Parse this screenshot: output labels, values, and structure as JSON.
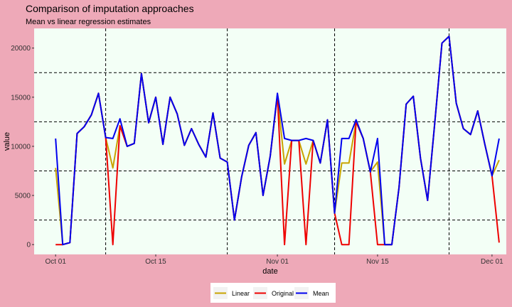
{
  "chart_data": {
    "type": "line",
    "title": "Comparison of imputation approaches",
    "subtitle": "Mean vs linear regression estimates",
    "xlabel": "date",
    "ylabel": "value",
    "x_start": "2018-10-01",
    "x_end": "2018-11-30",
    "xlim": [
      "2018-09-28",
      "2018-12-03"
    ],
    "ylim": [
      -1000,
      22000
    ],
    "x_ticks": [
      {
        "date": "2018-10-01",
        "label": "Oct 01"
      },
      {
        "date": "2018-10-15",
        "label": "Oct 15"
      },
      {
        "date": "2018-11-01",
        "label": "Nov 01"
      },
      {
        "date": "2018-11-15",
        "label": "Nov 15"
      },
      {
        "date": "2018-12-01",
        "label": "Dec 01"
      }
    ],
    "y_ticks": [
      0,
      5000,
      10000,
      15000,
      20000
    ],
    "hlines": [
      2500,
      7500,
      12500,
      17500
    ],
    "vlines": [
      "2018-10-08",
      "2018-10-25",
      "2018-11-09",
      "2018-11-25"
    ],
    "grid": true,
    "legend_position": "bottom",
    "colors": {
      "plot_background": "#f3fff6",
      "page_background": "#eea9b8",
      "Linear": "#c8a400",
      "Original": "#ee0000",
      "Mean": "#0000ee"
    },
    "series": [
      {
        "name": "Linear",
        "values": [
          7800,
          0,
          200,
          11300,
          12000,
          13200,
          15400,
          10900,
          7800,
          12100,
          10000,
          10300,
          17400,
          12400,
          15000,
          10200,
          15000,
          13300,
          10100,
          11800,
          10200,
          8900,
          13400,
          8800,
          8400,
          2500,
          6900,
          10100,
          11400,
          5000,
          9000,
          15200,
          8200,
          10600,
          10600,
          8200,
          10600,
          8300,
          12700,
          3200,
          8300,
          8300,
          12500,
          10800,
          7400,
          8400,
          0,
          0,
          5800,
          14300,
          15100,
          8800,
          4500,
          12400,
          20500,
          21200,
          14400,
          11800,
          11200,
          13600,
          10200,
          7000,
          8600
        ]
      },
      {
        "name": "Original",
        "values": [
          0,
          0,
          200,
          11300,
          12000,
          13200,
          15400,
          10900,
          0,
          12100,
          10000,
          10300,
          17400,
          12400,
          15000,
          10200,
          15000,
          13300,
          10100,
          11800,
          10200,
          8900,
          13400,
          8800,
          8400,
          2500,
          6900,
          10100,
          11400,
          5000,
          9000,
          15200,
          0,
          10600,
          10600,
          0,
          10600,
          8300,
          12700,
          3200,
          0,
          0,
          12500,
          10800,
          7400,
          0,
          0,
          0,
          5800,
          14300,
          15100,
          8800,
          4500,
          12400,
          20500,
          21200,
          14400,
          11800,
          11200,
          13600,
          10200,
          7000,
          200
        ]
      },
      {
        "name": "Mean",
        "values": [
          10800,
          0,
          200,
          11300,
          12000,
          13200,
          15400,
          10900,
          10800,
          12800,
          10000,
          10300,
          17400,
          12400,
          15000,
          10200,
          15000,
          13300,
          10100,
          11800,
          10200,
          8900,
          13400,
          8800,
          8400,
          2500,
          6900,
          10100,
          11400,
          5000,
          9000,
          15400,
          10800,
          10600,
          10600,
          10800,
          10600,
          8300,
          12700,
          3200,
          10800,
          10800,
          12700,
          10800,
          7400,
          10800,
          0,
          0,
          5800,
          14300,
          15100,
          8800,
          4500,
          12400,
          20500,
          21200,
          14400,
          11800,
          11200,
          13600,
          10200,
          7000,
          10800
        ]
      }
    ]
  }
}
